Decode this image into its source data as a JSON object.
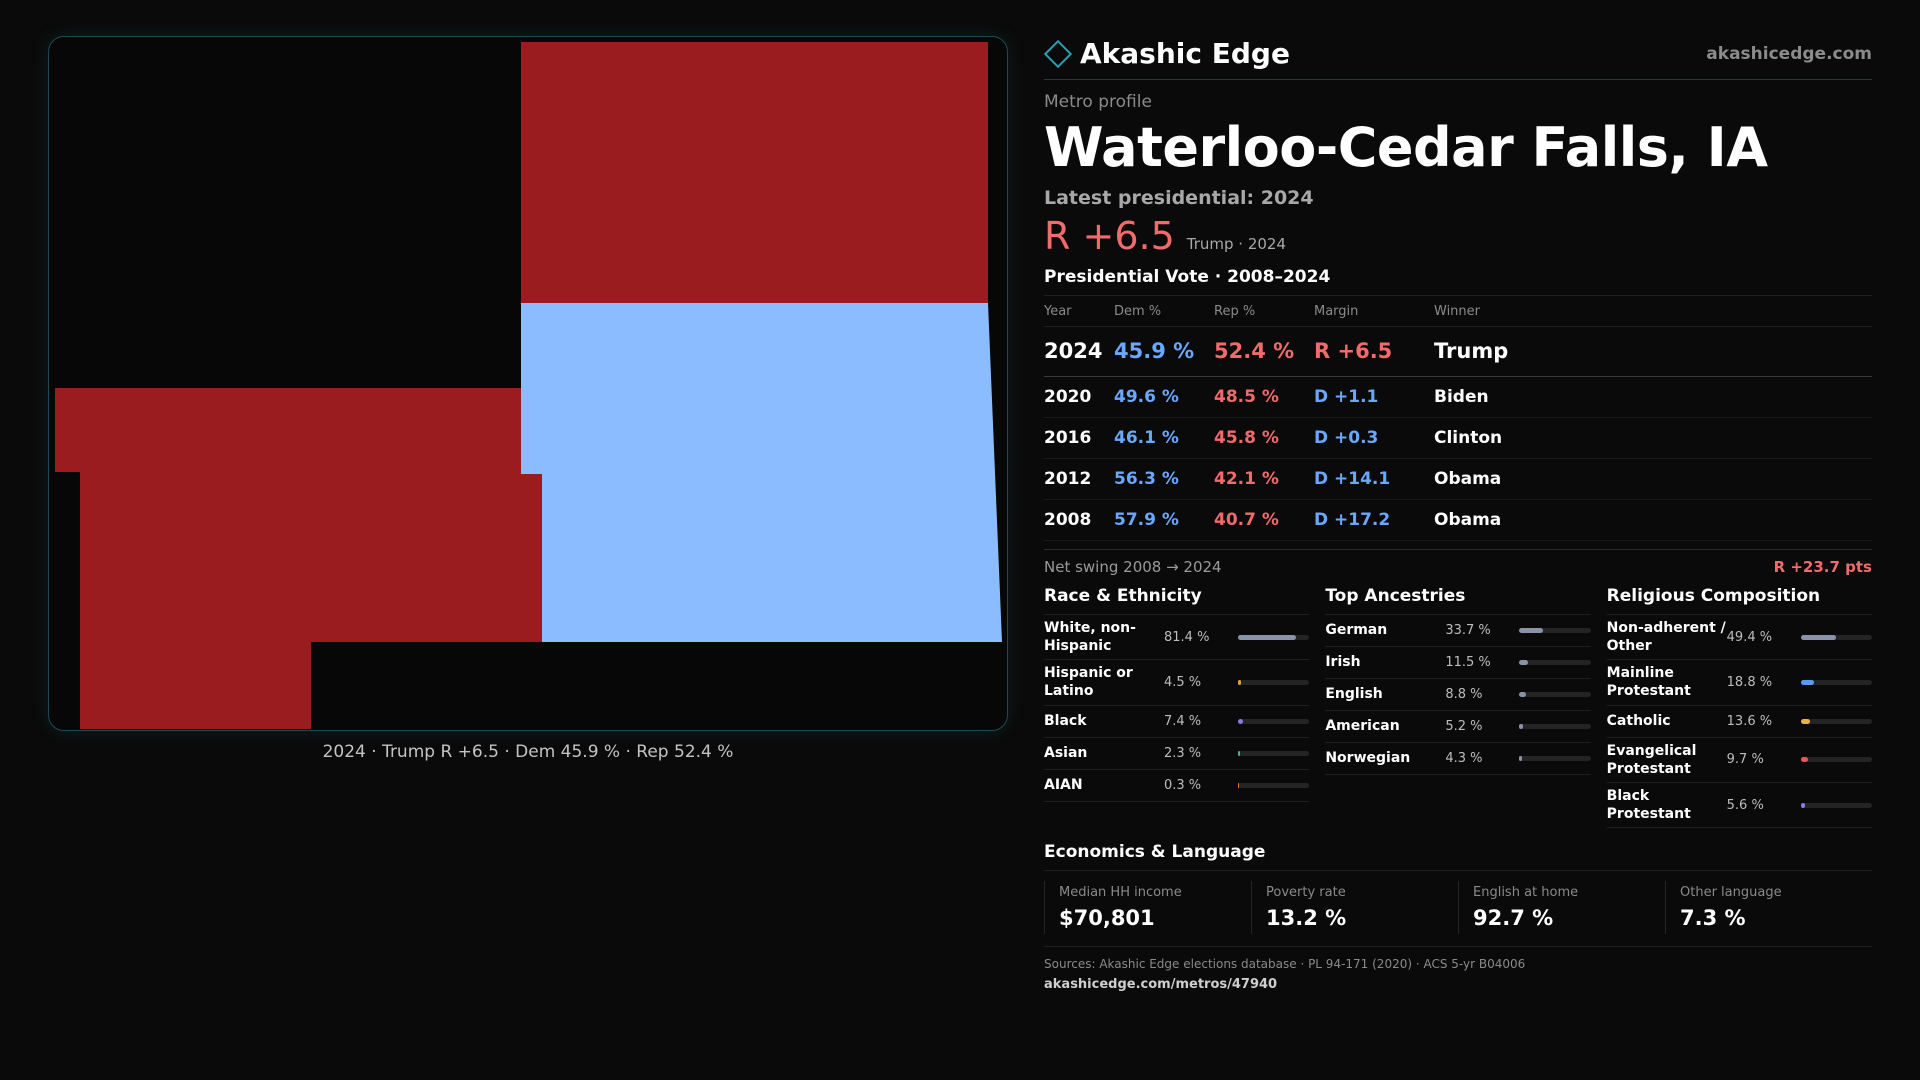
{
  "map": {
    "caption": "2024 · Trump R +6.5 · Dem 45.9 % · Rep 52.4 %",
    "colors": {
      "rep": "#9b1c1f",
      "dem": "#8bbcff"
    },
    "regions": [
      {
        "name": "region-top-right",
        "party": "rep"
      },
      {
        "name": "region-right",
        "party": "dem"
      },
      {
        "name": "region-left",
        "party": "rep"
      }
    ]
  },
  "header": {
    "brand": "Akashic Edge",
    "site": "akashicedge.com"
  },
  "profile": {
    "kicker": "Metro profile",
    "title": "Waterloo-Cedar Falls, IA",
    "latest_label": "Latest presidential: 2024",
    "margin": "R +6.5",
    "margin_sub": "Trump · 2024",
    "vote_title": "Presidential Vote · 2008–2024"
  },
  "vote": {
    "headers": {
      "year": "Year",
      "dem": "Dem %",
      "rep": "Rep %",
      "margin": "Margin",
      "winner": "Winner"
    },
    "rows": [
      {
        "year": "2024",
        "dem": "45.9 %",
        "rep": "52.4 %",
        "margin": "R +6.5",
        "winner": "Trump"
      },
      {
        "year": "2020",
        "dem": "49.6 %",
        "rep": "48.5 %",
        "margin": "D +1.1",
        "winner": "Biden"
      },
      {
        "year": "2016",
        "dem": "46.1 %",
        "rep": "45.8 %",
        "margin": "D +0.3",
        "winner": "Clinton"
      },
      {
        "year": "2012",
        "dem": "56.3 %",
        "rep": "42.1 %",
        "margin": "D +14.1",
        "winner": "Obama"
      },
      {
        "year": "2008",
        "dem": "57.9 %",
        "rep": "40.7 %",
        "margin": "D +17.2",
        "winner": "Obama"
      }
    ]
  },
  "swing": {
    "label": "Net swing 2008 → 2024",
    "value": "R +23.7 pts"
  },
  "race": {
    "title": "Race & Ethnicity",
    "items": [
      {
        "label": "White, non-Hispanic",
        "value": "81.4 %",
        "pct": 81.4,
        "color": "#8a93a8"
      },
      {
        "label": "Hispanic or Latino",
        "value": "4.5 %",
        "pct": 4.5,
        "color": "#e0a030"
      },
      {
        "label": "Black",
        "value": "7.4 %",
        "pct": 7.4,
        "color": "#8a7ce0"
      },
      {
        "label": "Asian",
        "value": "2.3 %",
        "pct": 2.3,
        "color": "#3fb59a"
      },
      {
        "label": "AIAN",
        "value": "0.3 %",
        "pct": 0.3,
        "color": "#e07a3a"
      }
    ]
  },
  "ancestry": {
    "title": "Top Ancestries",
    "items": [
      {
        "label": "German",
        "value": "33.7 %",
        "pct": 33.7,
        "color": "#8a93a8"
      },
      {
        "label": "Irish",
        "value": "11.5 %",
        "pct": 11.5,
        "color": "#8a93a8"
      },
      {
        "label": "English",
        "value": "8.8 %",
        "pct": 8.8,
        "color": "#8a93a8"
      },
      {
        "label": "American",
        "value": "5.2 %",
        "pct": 5.2,
        "color": "#8a93a8"
      },
      {
        "label": "Norwegian",
        "value": "4.3 %",
        "pct": 4.3,
        "color": "#8a93a8"
      }
    ]
  },
  "religion": {
    "title": "Religious Composition",
    "items": [
      {
        "label": "Non-adherent / Other",
        "value": "49.4 %",
        "pct": 49.4,
        "color": "#8a93a8"
      },
      {
        "label": "Mainline Protestant",
        "value": "18.8 %",
        "pct": 18.8,
        "color": "#5a9cf0"
      },
      {
        "label": "Catholic",
        "value": "13.6 %",
        "pct": 13.6,
        "color": "#e8b43a"
      },
      {
        "label": "Evangelical Protestant",
        "value": "9.7 %",
        "pct": 9.7,
        "color": "#e05a5a"
      },
      {
        "label": "Black Protestant",
        "value": "5.6 %",
        "pct": 5.6,
        "color": "#8a7ce0"
      }
    ]
  },
  "economics": {
    "title": "Economics & Language",
    "items": [
      {
        "label": "Median HH income",
        "value": "$70,801"
      },
      {
        "label": "Poverty rate",
        "value": "13.2 %"
      },
      {
        "label": "English at home",
        "value": "92.7 %"
      },
      {
        "label": "Other language",
        "value": "7.3 %"
      }
    ]
  },
  "footer": {
    "sources": "Sources: Akashic Edge elections database · PL 94-171 (2020) · ACS 5-yr B04006",
    "url": "akashicedge.com/metros/47940"
  }
}
